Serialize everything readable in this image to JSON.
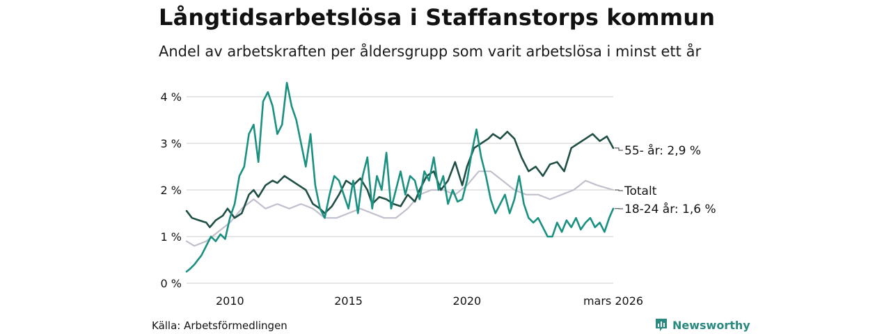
{
  "header": {
    "title": "Långtidsarbetslösa i Staffanstorps kommun",
    "subtitle": "Andel av arbetskraften per åldersgrupp som varit arbetslösa i minst ett år"
  },
  "footer": {
    "source": "Källa: Arbetsförmedlingen",
    "brand": "Newsworthy"
  },
  "colors": {
    "old": "#1f4e45",
    "young": "#1a9080",
    "total": "#c2bfcc",
    "grid": "#dddddd",
    "axis_text": "#111111"
  },
  "chart_data": {
    "type": "line",
    "title": "Långtidsarbetslösa i Staffanstorps kommun",
    "ylabel": "",
    "xlabel": "",
    "ylim": [
      0,
      4.35
    ],
    "xlim": [
      2008.17,
      2026.17
    ],
    "yticks": [
      {
        "value": 0,
        "label": "0 %"
      },
      {
        "value": 1,
        "label": "1 %"
      },
      {
        "value": 2,
        "label": "2 %"
      },
      {
        "value": 3,
        "label": "3 %"
      },
      {
        "value": 4,
        "label": "4 %"
      }
    ],
    "xticks": [
      {
        "value": 2010,
        "label": "2010"
      },
      {
        "value": 2015,
        "label": "2015"
      },
      {
        "value": 2020,
        "label": "2020"
      },
      {
        "value": 2026.17,
        "label": "mars 2026"
      }
    ],
    "series": [
      {
        "name": "Totalt",
        "label": "Totalt",
        "color_key": "total",
        "points": [
          [
            2008.17,
            0.9
          ],
          [
            2008.5,
            0.8
          ],
          [
            2009.0,
            0.9
          ],
          [
            2009.5,
            1.1
          ],
          [
            2010.0,
            1.3
          ],
          [
            2010.5,
            1.6
          ],
          [
            2011.0,
            1.8
          ],
          [
            2011.5,
            1.6
          ],
          [
            2012.0,
            1.7
          ],
          [
            2012.5,
            1.6
          ],
          [
            2013.0,
            1.7
          ],
          [
            2013.5,
            1.6
          ],
          [
            2014.0,
            1.4
          ],
          [
            2014.5,
            1.4
          ],
          [
            2015.0,
            1.5
          ],
          [
            2015.5,
            1.6
          ],
          [
            2016.0,
            1.5
          ],
          [
            2016.5,
            1.4
          ],
          [
            2017.0,
            1.4
          ],
          [
            2017.5,
            1.6
          ],
          [
            2018.0,
            1.9
          ],
          [
            2018.5,
            2.0
          ],
          [
            2019.0,
            2.0
          ],
          [
            2019.5,
            1.9
          ],
          [
            2020.0,
            2.1
          ],
          [
            2020.5,
            2.4
          ],
          [
            2021.0,
            2.4
          ],
          [
            2021.5,
            2.2
          ],
          [
            2022.0,
            2.0
          ],
          [
            2022.5,
            1.9
          ],
          [
            2023.0,
            1.9
          ],
          [
            2023.5,
            1.8
          ],
          [
            2024.0,
            1.9
          ],
          [
            2024.5,
            2.0
          ],
          [
            2025.0,
            2.2
          ],
          [
            2025.5,
            2.1
          ],
          [
            2026.17,
            2.0
          ]
        ]
      },
      {
        "name": "55- år",
        "label": "55- år: 2,9 %",
        "color_key": "old",
        "points": [
          [
            2008.17,
            1.55
          ],
          [
            2008.4,
            1.4
          ],
          [
            2008.7,
            1.35
          ],
          [
            2009.0,
            1.3
          ],
          [
            2009.15,
            1.2
          ],
          [
            2009.4,
            1.35
          ],
          [
            2009.7,
            1.45
          ],
          [
            2009.9,
            1.6
          ],
          [
            2010.2,
            1.4
          ],
          [
            2010.5,
            1.5
          ],
          [
            2010.8,
            1.9
          ],
          [
            2011.0,
            2.0
          ],
          [
            2011.2,
            1.85
          ],
          [
            2011.5,
            2.1
          ],
          [
            2011.8,
            2.2
          ],
          [
            2012.0,
            2.15
          ],
          [
            2012.3,
            2.3
          ],
          [
            2012.6,
            2.2
          ],
          [
            2012.9,
            2.1
          ],
          [
            2013.2,
            2.0
          ],
          [
            2013.5,
            1.7
          ],
          [
            2013.8,
            1.6
          ],
          [
            2014.0,
            1.5
          ],
          [
            2014.3,
            1.65
          ],
          [
            2014.6,
            1.9
          ],
          [
            2014.9,
            2.2
          ],
          [
            2015.2,
            2.1
          ],
          [
            2015.5,
            2.25
          ],
          [
            2015.8,
            2.0
          ],
          [
            2016.0,
            1.7
          ],
          [
            2016.3,
            1.85
          ],
          [
            2016.6,
            1.8
          ],
          [
            2016.9,
            1.7
          ],
          [
            2017.2,
            1.65
          ],
          [
            2017.5,
            1.9
          ],
          [
            2017.8,
            1.75
          ],
          [
            2018.0,
            2.0
          ],
          [
            2018.3,
            2.3
          ],
          [
            2018.6,
            2.4
          ],
          [
            2018.9,
            2.0
          ],
          [
            2019.2,
            2.2
          ],
          [
            2019.5,
            2.6
          ],
          [
            2019.8,
            2.1
          ],
          [
            2020.0,
            2.5
          ],
          [
            2020.3,
            2.9
          ],
          [
            2020.6,
            3.0
          ],
          [
            2020.9,
            3.1
          ],
          [
            2021.1,
            3.2
          ],
          [
            2021.4,
            3.1
          ],
          [
            2021.7,
            3.25
          ],
          [
            2022.0,
            3.1
          ],
          [
            2022.3,
            2.7
          ],
          [
            2022.6,
            2.4
          ],
          [
            2022.9,
            2.5
          ],
          [
            2023.2,
            2.3
          ],
          [
            2023.5,
            2.55
          ],
          [
            2023.8,
            2.6
          ],
          [
            2024.1,
            2.4
          ],
          [
            2024.4,
            2.9
          ],
          [
            2024.7,
            3.0
          ],
          [
            2025.0,
            3.1
          ],
          [
            2025.3,
            3.2
          ],
          [
            2025.6,
            3.05
          ],
          [
            2025.9,
            3.15
          ],
          [
            2026.17,
            2.9
          ]
        ]
      },
      {
        "name": "18-24 år",
        "label": "18-24 år: 1,6 %",
        "color_key": "young",
        "points": [
          [
            2008.17,
            0.25
          ],
          [
            2008.3,
            0.3
          ],
          [
            2008.5,
            0.4
          ],
          [
            2008.8,
            0.6
          ],
          [
            2009.0,
            0.8
          ],
          [
            2009.2,
            1.0
          ],
          [
            2009.4,
            0.9
          ],
          [
            2009.6,
            1.05
          ],
          [
            2009.8,
            0.95
          ],
          [
            2010.0,
            1.4
          ],
          [
            2010.2,
            1.7
          ],
          [
            2010.4,
            2.3
          ],
          [
            2010.6,
            2.5
          ],
          [
            2010.8,
            3.2
          ],
          [
            2011.0,
            3.4
          ],
          [
            2011.2,
            2.6
          ],
          [
            2011.4,
            3.9
          ],
          [
            2011.6,
            4.1
          ],
          [
            2011.8,
            3.8
          ],
          [
            2012.0,
            3.2
          ],
          [
            2012.2,
            3.4
          ],
          [
            2012.4,
            4.3
          ],
          [
            2012.6,
            3.8
          ],
          [
            2012.8,
            3.5
          ],
          [
            2013.0,
            3.0
          ],
          [
            2013.2,
            2.5
          ],
          [
            2013.4,
            3.2
          ],
          [
            2013.6,
            2.1
          ],
          [
            2013.8,
            1.6
          ],
          [
            2014.0,
            1.4
          ],
          [
            2014.2,
            1.9
          ],
          [
            2014.4,
            2.3
          ],
          [
            2014.6,
            2.2
          ],
          [
            2014.8,
            1.9
          ],
          [
            2015.0,
            1.6
          ],
          [
            2015.2,
            2.2
          ],
          [
            2015.4,
            1.5
          ],
          [
            2015.6,
            2.3
          ],
          [
            2015.8,
            2.7
          ],
          [
            2016.0,
            1.6
          ],
          [
            2016.2,
            2.3
          ],
          [
            2016.4,
            2.0
          ],
          [
            2016.6,
            2.8
          ],
          [
            2016.8,
            1.6
          ],
          [
            2017.0,
            2.0
          ],
          [
            2017.2,
            2.4
          ],
          [
            2017.4,
            1.9
          ],
          [
            2017.6,
            2.3
          ],
          [
            2017.8,
            2.2
          ],
          [
            2018.0,
            1.8
          ],
          [
            2018.2,
            2.4
          ],
          [
            2018.4,
            2.2
          ],
          [
            2018.6,
            2.7
          ],
          [
            2018.8,
            2.0
          ],
          [
            2019.0,
            2.3
          ],
          [
            2019.2,
            1.7
          ],
          [
            2019.4,
            2.0
          ],
          [
            2019.6,
            1.75
          ],
          [
            2019.8,
            1.8
          ],
          [
            2020.0,
            2.2
          ],
          [
            2020.2,
            2.8
          ],
          [
            2020.4,
            3.3
          ],
          [
            2020.6,
            2.7
          ],
          [
            2020.8,
            2.3
          ],
          [
            2021.0,
            1.8
          ],
          [
            2021.2,
            1.5
          ],
          [
            2021.4,
            1.7
          ],
          [
            2021.6,
            1.9
          ],
          [
            2021.8,
            1.5
          ],
          [
            2022.0,
            1.8
          ],
          [
            2022.2,
            2.3
          ],
          [
            2022.4,
            1.7
          ],
          [
            2022.6,
            1.4
          ],
          [
            2022.8,
            1.3
          ],
          [
            2023.0,
            1.4
          ],
          [
            2023.2,
            1.2
          ],
          [
            2023.4,
            1.0
          ],
          [
            2023.6,
            1.0
          ],
          [
            2023.8,
            1.3
          ],
          [
            2024.0,
            1.1
          ],
          [
            2024.2,
            1.35
          ],
          [
            2024.4,
            1.2
          ],
          [
            2024.6,
            1.4
          ],
          [
            2024.8,
            1.15
          ],
          [
            2025.0,
            1.3
          ],
          [
            2025.2,
            1.4
          ],
          [
            2025.4,
            1.2
          ],
          [
            2025.6,
            1.3
          ],
          [
            2025.8,
            1.1
          ],
          [
            2026.0,
            1.4
          ],
          [
            2026.17,
            1.6
          ]
        ]
      }
    ]
  }
}
